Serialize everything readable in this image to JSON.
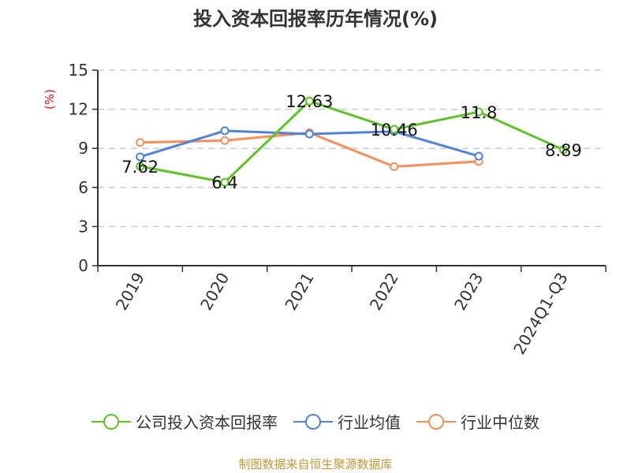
{
  "title": "投入资本回报率历年情况(%)",
  "y_unit_label": "(%)",
  "footer": "制图数据来自恒生聚源数据库",
  "colors": {
    "company": "#5cc524",
    "industry_avg": "#4f82df",
    "industry_median": "#fb8d59",
    "unit_label": "#e81010",
    "footer": "#c49a34",
    "grid": "#cccccc",
    "axis": "#333333"
  },
  "legend": [
    {
      "label": "公司投入资本回报率",
      "color": "#5cc524"
    },
    {
      "label": "行业均值",
      "color": "#4f82df"
    },
    {
      "label": "行业中位数",
      "color": "#fb8d59"
    }
  ],
  "chart_data": {
    "type": "line",
    "title": "投入资本回报率历年情况(%)",
    "xlabel": "",
    "ylabel": "(%)",
    "categories": [
      "2019",
      "2020",
      "2021",
      "2022",
      "2023",
      "2024Q1-Q3"
    ],
    "yticks": [
      0,
      3,
      6,
      9,
      12,
      15
    ],
    "ylim": [
      0,
      15
    ],
    "grid": true,
    "legend_position": "bottom",
    "series": [
      {
        "name": "公司投入资本回报率",
        "values": [
          7.62,
          6.4,
          12.63,
          10.46,
          11.8,
          8.89
        ],
        "labels": [
          "7.62",
          "6.4",
          "12.63",
          "10.46",
          "11.8",
          "8.89"
        ]
      },
      {
        "name": "行业均值",
        "values": [
          8.35,
          10.35,
          10.1,
          10.3,
          8.4,
          null
        ]
      },
      {
        "name": "行业中位数",
        "values": [
          9.45,
          9.6,
          10.2,
          7.6,
          8.0,
          null
        ]
      }
    ]
  }
}
